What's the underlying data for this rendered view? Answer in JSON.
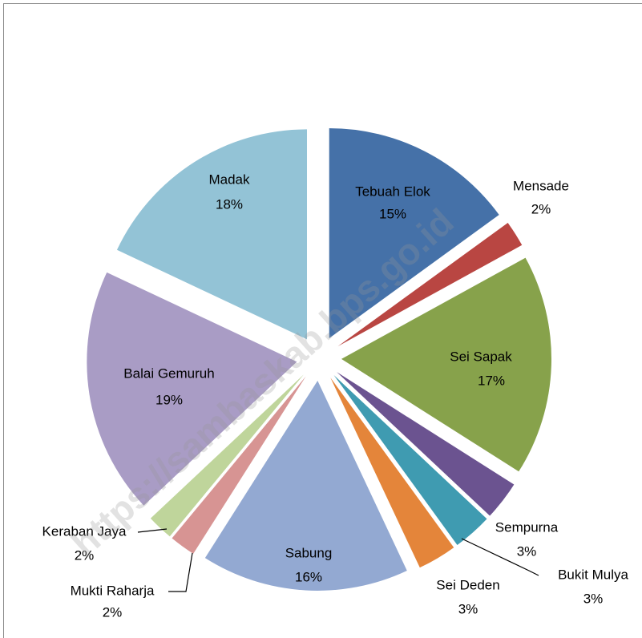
{
  "chart_data": {
    "type": "pie",
    "categories": [
      "Tebuah Elok",
      "Mensade",
      "Sei Sapak",
      "Sempurna",
      "Bukit Mulya",
      "Sei Deden",
      "Sabung",
      "Mukti Raharja",
      "Keraban Jaya",
      "Balai Gemuruh",
      "Madak"
    ],
    "values": [
      15,
      2,
      17,
      3,
      3,
      3,
      16,
      2,
      2,
      19,
      18
    ],
    "value_labels": [
      "15%",
      "2%",
      "17%",
      "3%",
      "3%",
      "3%",
      "16%",
      "2%",
      "2%",
      "19%",
      "18%"
    ],
    "colors": [
      "#4571a8",
      "#b94642",
      "#87a24b",
      "#6b5390",
      "#3f9bb1",
      "#e4853a",
      "#93a9d2",
      "#d79493",
      "#bfd59b",
      "#a99cc5",
      "#93c3d6"
    ],
    "watermark": "https://sambaskab.bps.go.id"
  }
}
